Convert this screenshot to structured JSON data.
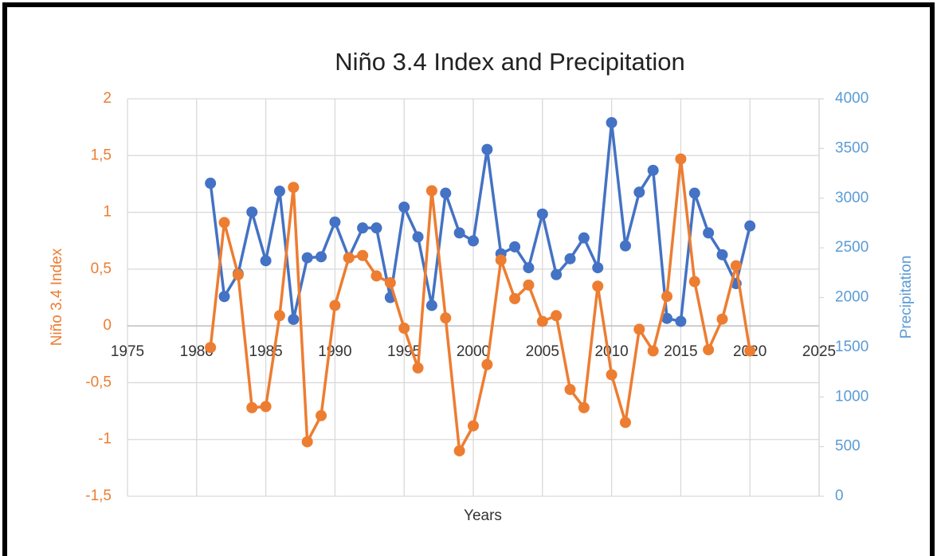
{
  "chart_data": {
    "type": "line",
    "title": "Niño 3.4 Index and Precipitation",
    "xlabel": "Years",
    "ylabel": "Niño 3.4 Index",
    "y2label": "Precipitation",
    "x": [
      1981,
      1982,
      1983,
      1984,
      1985,
      1986,
      1987,
      1988,
      1989,
      1990,
      1991,
      1992,
      1993,
      1994,
      1995,
      1996,
      1997,
      1998,
      1999,
      2000,
      2001,
      2002,
      2003,
      2004,
      2005,
      2006,
      2007,
      2008,
      2009,
      2010,
      2011,
      2012,
      2013,
      2014,
      2015,
      2016,
      2017,
      2018,
      2019,
      2020
    ],
    "series": [
      {
        "color": "#4472c4",
        "axis": "y2",
        "values": [
          3150,
          2010,
          2240,
          2860,
          2370,
          3070,
          1780,
          2400,
          2410,
          2760,
          2400,
          2700,
          2700,
          2000,
          2910,
          2610,
          1920,
          3050,
          2650,
          2570,
          3490,
          2440,
          2510,
          2300,
          2840,
          2230,
          2390,
          2600,
          2300,
          3760,
          2520,
          3060,
          3280,
          1790,
          1760,
          3050,
          2650,
          2430,
          2140,
          2720
        ]
      },
      {
        "color": "#ed7d31",
        "values": [
          -0.19,
          0.91,
          0.45,
          -0.72,
          -0.71,
          0.09,
          1.22,
          -1.02,
          -0.79,
          0.18,
          0.6,
          0.62,
          0.44,
          0.38,
          -0.02,
          -0.37,
          1.19,
          0.07,
          -1.1,
          -0.88,
          -0.34,
          0.58,
          0.24,
          0.36,
          0.04,
          0.09,
          -0.56,
          -0.72,
          0.35,
          -0.43,
          -0.85,
          -0.03,
          -0.22,
          0.26,
          1.47,
          0.39,
          -0.21,
          0.06,
          0.53,
          -0.22
        ]
      }
    ],
    "xlim": [
      1975,
      2025
    ],
    "xticks": [
      1975,
      1980,
      1985,
      1990,
      1995,
      2000,
      2005,
      2010,
      2015,
      2020,
      2025
    ],
    "ylim": [
      -1.5,
      2
    ],
    "yticks": [
      {
        "value": -1.5,
        "label": "-1,5"
      },
      -1,
      {
        "value": -0.5,
        "label": "-0,5"
      },
      0,
      {
        "value": 0.5,
        "label": "0,5"
      },
      1,
      {
        "value": 1.5,
        "label": "1,5"
      },
      2
    ],
    "y2lim": [
      0,
      4000
    ],
    "y2ticks": [
      0,
      500,
      1000,
      1500,
      2000,
      2500,
      3000,
      3500,
      4000
    ],
    "grid": true,
    "ycolor": "#ed7d31",
    "y2color": "#5b9bd5"
  }
}
